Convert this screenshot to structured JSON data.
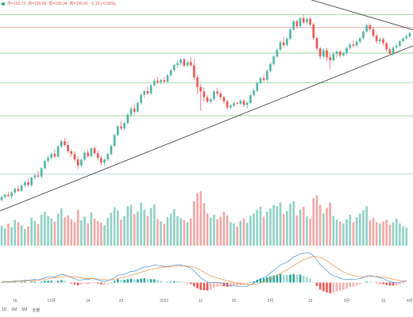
{
  "legend": {
    "open": "开=193.73",
    "high": "高=195.86",
    "low": "低=190.34",
    "close": "收=190.60",
    "change": "-1.13 (-0.58%)"
  },
  "colors": {
    "up": "#4cb5a5",
    "down": "#ef5350",
    "up_vol": "#8fd0c6",
    "down_vol": "#f4a6a4",
    "macd_line": "#3b8fe0",
    "signal_line": "#f08a3a",
    "hline_green": "#7cc47c",
    "hline_red": "#e88a8a",
    "hline_blue": "#90b8e8",
    "trendline": "#333333"
  },
  "range_buttons": [
    "1D",
    "1M",
    "5M",
    "全部"
  ],
  "chart_data": {
    "type": "candlestick",
    "x_tick_labels": [
      "16",
      "12月",
      "14",
      "23",
      "2021",
      "11",
      "20",
      "2月",
      "15",
      "3月",
      "15",
      "4月"
    ],
    "candles": [
      [
        131.3,
        132.9,
        130.7,
        132.4
      ],
      [
        132.4,
        133.6,
        131.9,
        133.2
      ],
      [
        133.2,
        134.3,
        132.6,
        132.7
      ],
      [
        132.7,
        134.5,
        131.8,
        134.0
      ],
      [
        134.0,
        135.7,
        133.5,
        135.3
      ],
      [
        135.3,
        136.5,
        134.2,
        134.6
      ],
      [
        134.6,
        136.9,
        134.1,
        136.5
      ],
      [
        136.5,
        138.2,
        135.8,
        137.6
      ],
      [
        137.6,
        138.9,
        136.1,
        136.6
      ],
      [
        136.6,
        139.6,
        136.0,
        139.2
      ],
      [
        139.2,
        140.7,
        138.5,
        140.0
      ],
      [
        140.0,
        141.6,
        139.0,
        139.6
      ],
      [
        139.6,
        142.9,
        139.1,
        142.5
      ],
      [
        142.5,
        145.6,
        142.0,
        145.1
      ],
      [
        145.1,
        147.1,
        144.2,
        146.2
      ],
      [
        146.2,
        148.1,
        145.3,
        147.6
      ],
      [
        147.6,
        149.3,
        146.0,
        146.6
      ],
      [
        146.6,
        150.7,
        146.1,
        150.2
      ],
      [
        150.2,
        152.6,
        149.5,
        152.0
      ],
      [
        152.0,
        153.2,
        150.2,
        150.7
      ],
      [
        150.7,
        151.9,
        147.8,
        148.5
      ],
      [
        148.5,
        149.3,
        146.5,
        147.5
      ],
      [
        147.5,
        148.4,
        144.8,
        145.6
      ],
      [
        145.6,
        146.7,
        142.2,
        143.5
      ],
      [
        143.5,
        146.0,
        142.8,
        145.5
      ],
      [
        145.5,
        148.5,
        145.0,
        148.0
      ],
      [
        148.0,
        149.2,
        146.1,
        146.8
      ],
      [
        146.8,
        150.0,
        146.3,
        149.5
      ],
      [
        149.5,
        150.3,
        147.2,
        147.8
      ],
      [
        147.8,
        148.9,
        145.4,
        146.2
      ],
      [
        146.2,
        147.0,
        143.6,
        144.5
      ],
      [
        144.5,
        146.1,
        143.3,
        145.6
      ],
      [
        145.6,
        148.0,
        145.1,
        147.5
      ],
      [
        147.5,
        150.9,
        147.0,
        150.4
      ],
      [
        150.4,
        154.7,
        149.9,
        154.2
      ],
      [
        154.2,
        157.7,
        153.7,
        157.2
      ],
      [
        157.2,
        159.1,
        155.9,
        156.5
      ],
      [
        156.5,
        158.9,
        155.8,
        158.4
      ],
      [
        158.4,
        161.9,
        157.9,
        161.4
      ],
      [
        161.4,
        164.3,
        160.5,
        163.5
      ],
      [
        163.5,
        165.3,
        161.2,
        162.4
      ],
      [
        162.4,
        166.0,
        161.9,
        165.5
      ],
      [
        165.5,
        168.9,
        164.8,
        168.3
      ],
      [
        168.3,
        170.3,
        167.2,
        169.6
      ],
      [
        169.6,
        171.2,
        168.2,
        168.8
      ],
      [
        168.8,
        172.2,
        168.3,
        171.7
      ],
      [
        171.7,
        173.9,
        171.2,
        173.3
      ],
      [
        173.3,
        174.7,
        172.1,
        172.8
      ],
      [
        172.8,
        174.1,
        172.0,
        173.5
      ],
      [
        173.5,
        174.7,
        172.5,
        173.0
      ],
      [
        173.0,
        175.7,
        172.5,
        175.2
      ],
      [
        175.2,
        177.5,
        174.5,
        177.0
      ],
      [
        177.0,
        179.3,
        176.5,
        178.8
      ],
      [
        178.8,
        180.4,
        177.7,
        179.5
      ],
      [
        179.5,
        181.2,
        178.5,
        180.8
      ],
      [
        180.8,
        181.3,
        178.0,
        178.6
      ],
      [
        178.6,
        180.3,
        178.1,
        179.8
      ],
      [
        179.8,
        181.6,
        178.3,
        178.7
      ],
      [
        178.7,
        180.9,
        173.5,
        174.5
      ],
      [
        174.5,
        175.4,
        168.5,
        171.0
      ],
      [
        171.0,
        172.2,
        162.7,
        169.5
      ],
      [
        169.5,
        170.9,
        166.0,
        167.5
      ],
      [
        167.5,
        168.2,
        165.4,
        165.9
      ],
      [
        165.9,
        167.4,
        165.3,
        166.8
      ],
      [
        166.8,
        170.1,
        166.3,
        169.5
      ],
      [
        169.5,
        170.8,
        168.1,
        168.8
      ],
      [
        168.8,
        169.5,
        166.5,
        167.5
      ],
      [
        167.5,
        168.1,
        165.2,
        166.0
      ],
      [
        166.0,
        166.6,
        163.2,
        163.9
      ],
      [
        163.9,
        165.1,
        163.2,
        164.6
      ],
      [
        164.6,
        166.1,
        164.0,
        165.4
      ],
      [
        165.4,
        165.9,
        164.8,
        165.2
      ],
      [
        165.2,
        166.8,
        164.7,
        166.2
      ],
      [
        166.2,
        167.0,
        164.0,
        164.8
      ],
      [
        164.8,
        166.1,
        163.5,
        165.5
      ],
      [
        165.5,
        168.8,
        165.0,
        168.2
      ],
      [
        168.2,
        170.5,
        167.8,
        169.8
      ],
      [
        169.8,
        173.0,
        169.3,
        172.5
      ],
      [
        172.5,
        174.8,
        172.0,
        174.2
      ],
      [
        174.2,
        175.5,
        172.8,
        173.6
      ],
      [
        173.6,
        177.3,
        173.0,
        176.7
      ],
      [
        176.7,
        179.7,
        176.2,
        179.2
      ],
      [
        179.2,
        182.3,
        178.7,
        181.8
      ],
      [
        181.8,
        184.7,
        181.2,
        184.2
      ],
      [
        184.2,
        187.5,
        183.6,
        186.8
      ],
      [
        186.8,
        188.6,
        185.0,
        185.8
      ],
      [
        185.8,
        188.6,
        185.3,
        188.0
      ],
      [
        188.0,
        191.9,
        187.5,
        191.3
      ],
      [
        191.3,
        194.9,
        190.8,
        194.2
      ],
      [
        194.2,
        194.8,
        191.6,
        192.4
      ],
      [
        192.4,
        195.9,
        191.8,
        195.3
      ],
      [
        195.3,
        196.4,
        193.2,
        193.8
      ],
      [
        193.8,
        195.6,
        193.1,
        195.1
      ],
      [
        195.1,
        195.8,
        192.5,
        193.0
      ],
      [
        193.0,
        193.7,
        187.6,
        188.3
      ],
      [
        188.3,
        188.9,
        183.7,
        184.6
      ],
      [
        184.6,
        185.2,
        180.9,
        181.8
      ],
      [
        181.8,
        184.7,
        181.1,
        184.0
      ],
      [
        184.0,
        184.8,
        180.1,
        181.5
      ],
      [
        181.5,
        182.6,
        177.4,
        180.5
      ],
      [
        180.5,
        183.3,
        179.8,
        182.7
      ],
      [
        182.7,
        184.1,
        181.4,
        183.5
      ],
      [
        183.5,
        184.0,
        181.3,
        182.2
      ],
      [
        182.2,
        183.5,
        181.7,
        183.0
      ],
      [
        183.0,
        185.3,
        182.5,
        184.8
      ],
      [
        184.8,
        186.7,
        184.2,
        186.0
      ],
      [
        186.0,
        187.3,
        185.0,
        185.6
      ],
      [
        185.6,
        187.6,
        185.1,
        187.0
      ],
      [
        187.0,
        188.7,
        186.3,
        188.3
      ],
      [
        188.3,
        191.2,
        187.8,
        190.6
      ],
      [
        190.6,
        193.4,
        190.1,
        192.8
      ],
      [
        192.8,
        193.5,
        190.6,
        191.4
      ],
      [
        191.4,
        192.2,
        188.4,
        189.1
      ],
      [
        189.1,
        189.9,
        186.5,
        187.2
      ],
      [
        187.2,
        188.5,
        186.1,
        187.9
      ],
      [
        187.9,
        188.5,
        185.7,
        186.5
      ],
      [
        186.5,
        186.9,
        183.5,
        184.3
      ],
      [
        184.3,
        185.0,
        182.2,
        182.8
      ],
      [
        182.8,
        185.5,
        182.3,
        184.9
      ],
      [
        184.9,
        186.3,
        184.4,
        185.6
      ],
      [
        185.6,
        187.8,
        185.1,
        187.2
      ],
      [
        187.2,
        188.7,
        186.7,
        188.2
      ],
      [
        188.2,
        189.8,
        187.6,
        188.9
      ],
      [
        188.9,
        190.4,
        188.3,
        190.0
      ]
    ],
    "volume": [
      32,
      28,
      36,
      30,
      42,
      38,
      33,
      27,
      31,
      45,
      40,
      35,
      50,
      55,
      48,
      44,
      39,
      52,
      60,
      46,
      49,
      43,
      38,
      58,
      41,
      47,
      36,
      54,
      44,
      40,
      37,
      33,
      45,
      53,
      62,
      57,
      42,
      48,
      64,
      66,
      51,
      55,
      70,
      58,
      48,
      61,
      67,
      43,
      39,
      35,
      46,
      52,
      59,
      48,
      45,
      41,
      38,
      44,
      72,
      85,
      88,
      69,
      52,
      45,
      50,
      43,
      47,
      55,
      49,
      38,
      36,
      31,
      40,
      44,
      37,
      48,
      52,
      58,
      63,
      47,
      55,
      60,
      66,
      64,
      70,
      51,
      56,
      68,
      72,
      49,
      58,
      63,
      47,
      44,
      77,
      81,
      66,
      52,
      61,
      70,
      48,
      42,
      39,
      36,
      43,
      50,
      38,
      46,
      52,
      57,
      64,
      41,
      45,
      38,
      36,
      39,
      42,
      34,
      38,
      44,
      36,
      31,
      29
    ],
    "macd": [
      0.2,
      0.3,
      0.3,
      0.4,
      0.5,
      0.5,
      0.6,
      0.8,
      0.7,
      0.9,
      1.0,
      0.9,
      1.2,
      1.6,
      1.8,
      2.0,
      1.8,
      2.3,
      2.7,
      2.5,
      2.1,
      1.7,
      1.3,
      0.8,
      0.8,
      1.1,
      1.0,
      1.3,
      1.2,
      0.9,
      0.5,
      0.4,
      0.6,
      1.0,
      1.7,
      2.4,
      2.5,
      2.7,
      3.2,
      3.7,
      3.7,
      4.1,
      4.7,
      5.1,
      5.1,
      5.4,
      5.7,
      5.6,
      5.5,
      5.2,
      5.3,
      5.5,
      5.7,
      5.8,
      5.8,
      5.4,
      5.2,
      4.8,
      3.8,
      2.6,
      1.6,
      0.9,
      0.2,
      -0.1,
      0.1,
      0.1,
      0.0,
      -0.3,
      -0.8,
      -1.0,
      -1.1,
      -1.2,
      -1.2,
      -1.3,
      -1.2,
      -0.7,
      -0.2,
      0.5,
      1.2,
      1.6,
      2.3,
      3.1,
      4.0,
      4.9,
      5.8,
      6.2,
      6.7,
      7.5,
      8.4,
      8.8,
      9.4,
      9.6,
      9.8,
      9.6,
      8.7,
      7.4,
      5.9,
      5.0,
      3.9,
      2.8,
      2.3,
      1.9,
      1.4,
      1.1,
      1.0,
      1.1,
      1.0,
      1.1,
      1.3,
      1.7,
      2.2,
      2.3,
      2.1,
      1.8,
      1.6,
      1.3,
      0.8,
      0.3,
      0.1,
      0.0,
      0.1,
      0.3,
      0.5
    ],
    "signal": [
      0.1,
      0.2,
      0.2,
      0.3,
      0.3,
      0.4,
      0.4,
      0.5,
      0.6,
      0.6,
      0.7,
      0.8,
      0.9,
      1.0,
      1.2,
      1.4,
      1.5,
      1.7,
      1.9,
      2.0,
      2.1,
      2.0,
      1.9,
      1.7,
      1.5,
      1.4,
      1.3,
      1.3,
      1.3,
      1.2,
      1.1,
      1.0,
      0.9,
      0.9,
      1.1,
      1.3,
      1.6,
      1.8,
      2.1,
      2.4,
      2.7,
      3.0,
      3.4,
      3.7,
      4.0,
      4.3,
      4.6,
      4.8,
      5.0,
      5.1,
      5.1,
      5.2,
      5.3,
      5.4,
      5.5,
      5.5,
      5.4,
      5.3,
      5.0,
      4.5,
      4.0,
      3.4,
      2.8,
      2.2,
      1.8,
      1.5,
      1.2,
      0.9,
      0.6,
      0.3,
      0.0,
      -0.2,
      -0.4,
      -0.6,
      -0.7,
      -0.7,
      -0.6,
      -0.4,
      -0.1,
      0.2,
      0.6,
      1.1,
      1.7,
      2.3,
      3.0,
      3.6,
      4.2,
      4.9,
      5.6,
      6.2,
      6.8,
      7.4,
      7.9,
      8.3,
      8.5,
      8.5,
      8.2,
      7.8,
      7.1,
      6.3,
      5.5,
      4.8,
      4.1,
      3.5,
      3.0,
      2.6,
      2.3,
      2.1,
      1.9,
      1.9,
      1.9,
      2.0,
      2.0,
      2.0,
      1.9,
      1.8,
      1.6,
      1.3,
      1.1,
      0.9,
      0.7,
      0.6,
      0.6
    ],
    "horizontal_lines": [
      {
        "price": 196.5,
        "color_key": "hline_green"
      },
      {
        "price": 192.0,
        "color_key": "hline_red"
      },
      {
        "price": 183.0,
        "color_key": "hline_green"
      },
      {
        "price": 172.5,
        "color_key": "hline_green"
      },
      {
        "price": 161.0,
        "color_key": "hline_green"
      },
      {
        "price": 140.5,
        "color_key": "hline_blue"
      }
    ],
    "trendlines": [
      {
        "from": [
          -2,
          126.8
        ],
        "to": [
          126,
          186.5
        ]
      },
      {
        "from": [
          62,
          212.5
        ],
        "to": [
          126,
          190.5
        ]
      }
    ],
    "price_range": [
      127.0,
      200.0
    ],
    "volume_max": 100,
    "macd_range": [
      -4.0,
      10.5
    ]
  }
}
